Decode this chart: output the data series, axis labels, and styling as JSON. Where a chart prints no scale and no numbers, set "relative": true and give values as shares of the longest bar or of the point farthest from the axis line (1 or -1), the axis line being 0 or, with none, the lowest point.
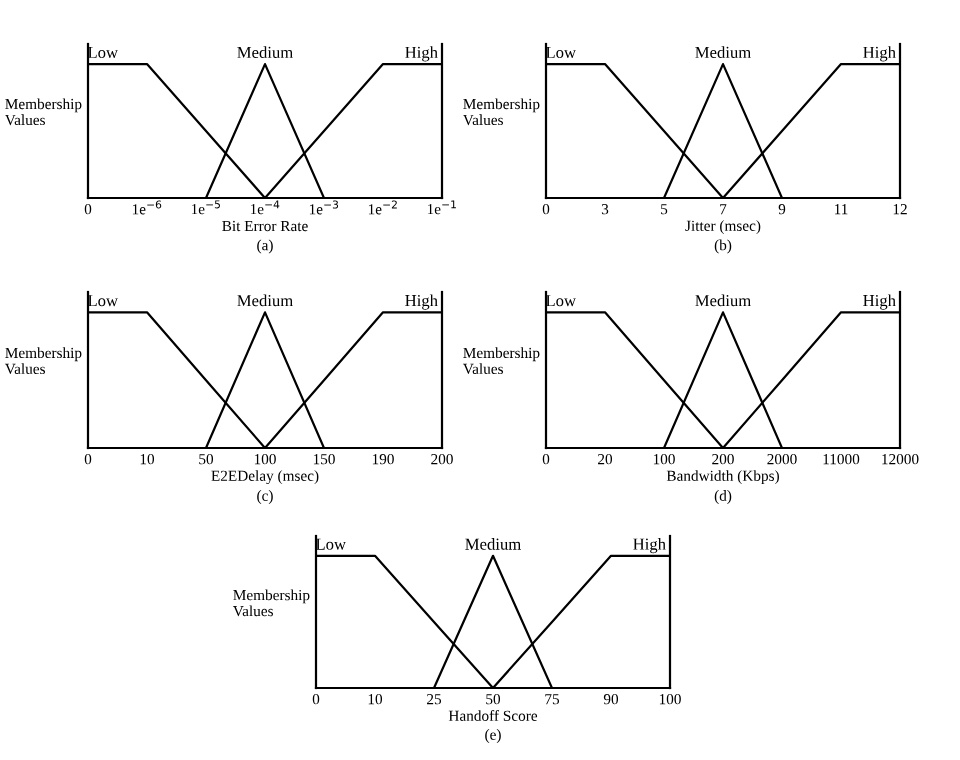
{
  "chart_data": [
    {
      "type": "line",
      "relative": true,
      "xlabel": "Bit Error Rate",
      "ylabel": "Membership\nValues",
      "annotations": [
        "(a)"
      ],
      "categories": [
        "0",
        "1e$^{−6}$",
        "1e$^{−5}$",
        "1e$^{−4}$",
        "1e$^{−3}$",
        "1e$^{−2}$",
        "1e$^{−1}$"
      ],
      "grid": false,
      "legend": false,
      "marker": "none",
      "line_style": "solid",
      "series": [
        {
          "name": "Low",
          "color": "#000000",
          "values": [
            1,
            1,
            0.5,
            0,
            null,
            null,
            null
          ]
        },
        {
          "name": "Medium",
          "color": "#000000",
          "values": [
            null,
            null,
            0,
            1,
            0,
            null,
            null
          ]
        },
        {
          "name": "High",
          "color": "#000000",
          "values": [
            null,
            null,
            null,
            0,
            0.5,
            1,
            1
          ]
        }
      ]
    },
    {
      "type": "line",
      "relative": true,
      "xlabel": "Jitter (msec)",
      "ylabel": "Membership\nValues",
      "annotations": [
        "(b)"
      ],
      "categories": [
        "0",
        "3",
        "5",
        "7",
        "9",
        "11",
        "12"
      ],
      "grid": false,
      "legend": false,
      "marker": "none",
      "line_style": "solid",
      "series": [
        {
          "name": "Low",
          "color": "#000000",
          "values": [
            1,
            1,
            0.5,
            0,
            null,
            null,
            null
          ]
        },
        {
          "name": "Medium",
          "color": "#000000",
          "values": [
            null,
            null,
            0,
            1,
            0,
            null,
            null
          ]
        },
        {
          "name": "High",
          "color": "#000000",
          "values": [
            null,
            null,
            null,
            0,
            0.5,
            1,
            1
          ]
        }
      ]
    },
    {
      "type": "line",
      "relative": true,
      "xlabel": "E2EDelay (msec)",
      "ylabel": "Membership\nValues",
      "annotations": [
        "(c)"
      ],
      "categories": [
        "0",
        "10",
        "50",
        "100",
        "150",
        "190",
        "200"
      ],
      "grid": false,
      "legend": false,
      "marker": "none",
      "line_style": "solid",
      "series": [
        {
          "name": "Low",
          "color": "#000000",
          "values": [
            1,
            1,
            0.5,
            0,
            null,
            null,
            null
          ]
        },
        {
          "name": "Medium",
          "color": "#000000",
          "values": [
            null,
            null,
            0,
            1,
            0,
            null,
            null
          ]
        },
        {
          "name": "High",
          "color": "#000000",
          "values": [
            null,
            null,
            null,
            0,
            0.5,
            1,
            1
          ]
        }
      ]
    },
    {
      "type": "line",
      "relative": true,
      "xlabel": "Bandwidth (Kbps)",
      "ylabel": "Membership\nValues",
      "annotations": [
        "(d)"
      ],
      "categories": [
        "0",
        "20",
        "100",
        "200",
        "2000",
        "11000",
        "12000"
      ],
      "grid": false,
      "legend": false,
      "marker": "none",
      "line_style": "solid",
      "series": [
        {
          "name": "Low",
          "color": "#000000",
          "values": [
            1,
            1,
            0.5,
            0,
            null,
            null,
            null
          ]
        },
        {
          "name": "Medium",
          "color": "#000000",
          "values": [
            null,
            null,
            0,
            1,
            0,
            null,
            null
          ]
        },
        {
          "name": "High",
          "color": "#000000",
          "values": [
            null,
            null,
            null,
            0,
            0.5,
            1,
            1
          ]
        }
      ]
    },
    {
      "type": "line",
      "relative": true,
      "xlabel": "Handoff Score",
      "ylabel": "Membership\nValues",
      "annotations": [
        "(e)"
      ],
      "categories": [
        "0",
        "10",
        "25",
        "50",
        "75",
        "90",
        "100"
      ],
      "grid": false,
      "legend": false,
      "marker": "none",
      "line_style": "solid",
      "series": [
        {
          "name": "Low",
          "color": "#000000",
          "values": [
            1,
            1,
            0.5,
            0,
            null,
            null,
            null
          ]
        },
        {
          "name": "Medium",
          "color": "#000000",
          "values": [
            null,
            null,
            0,
            1,
            0,
            null,
            null
          ]
        },
        {
          "name": "High",
          "color": "#000000",
          "values": [
            null,
            null,
            null,
            0,
            0.5,
            1,
            1
          ]
        }
      ]
    }
  ]
}
